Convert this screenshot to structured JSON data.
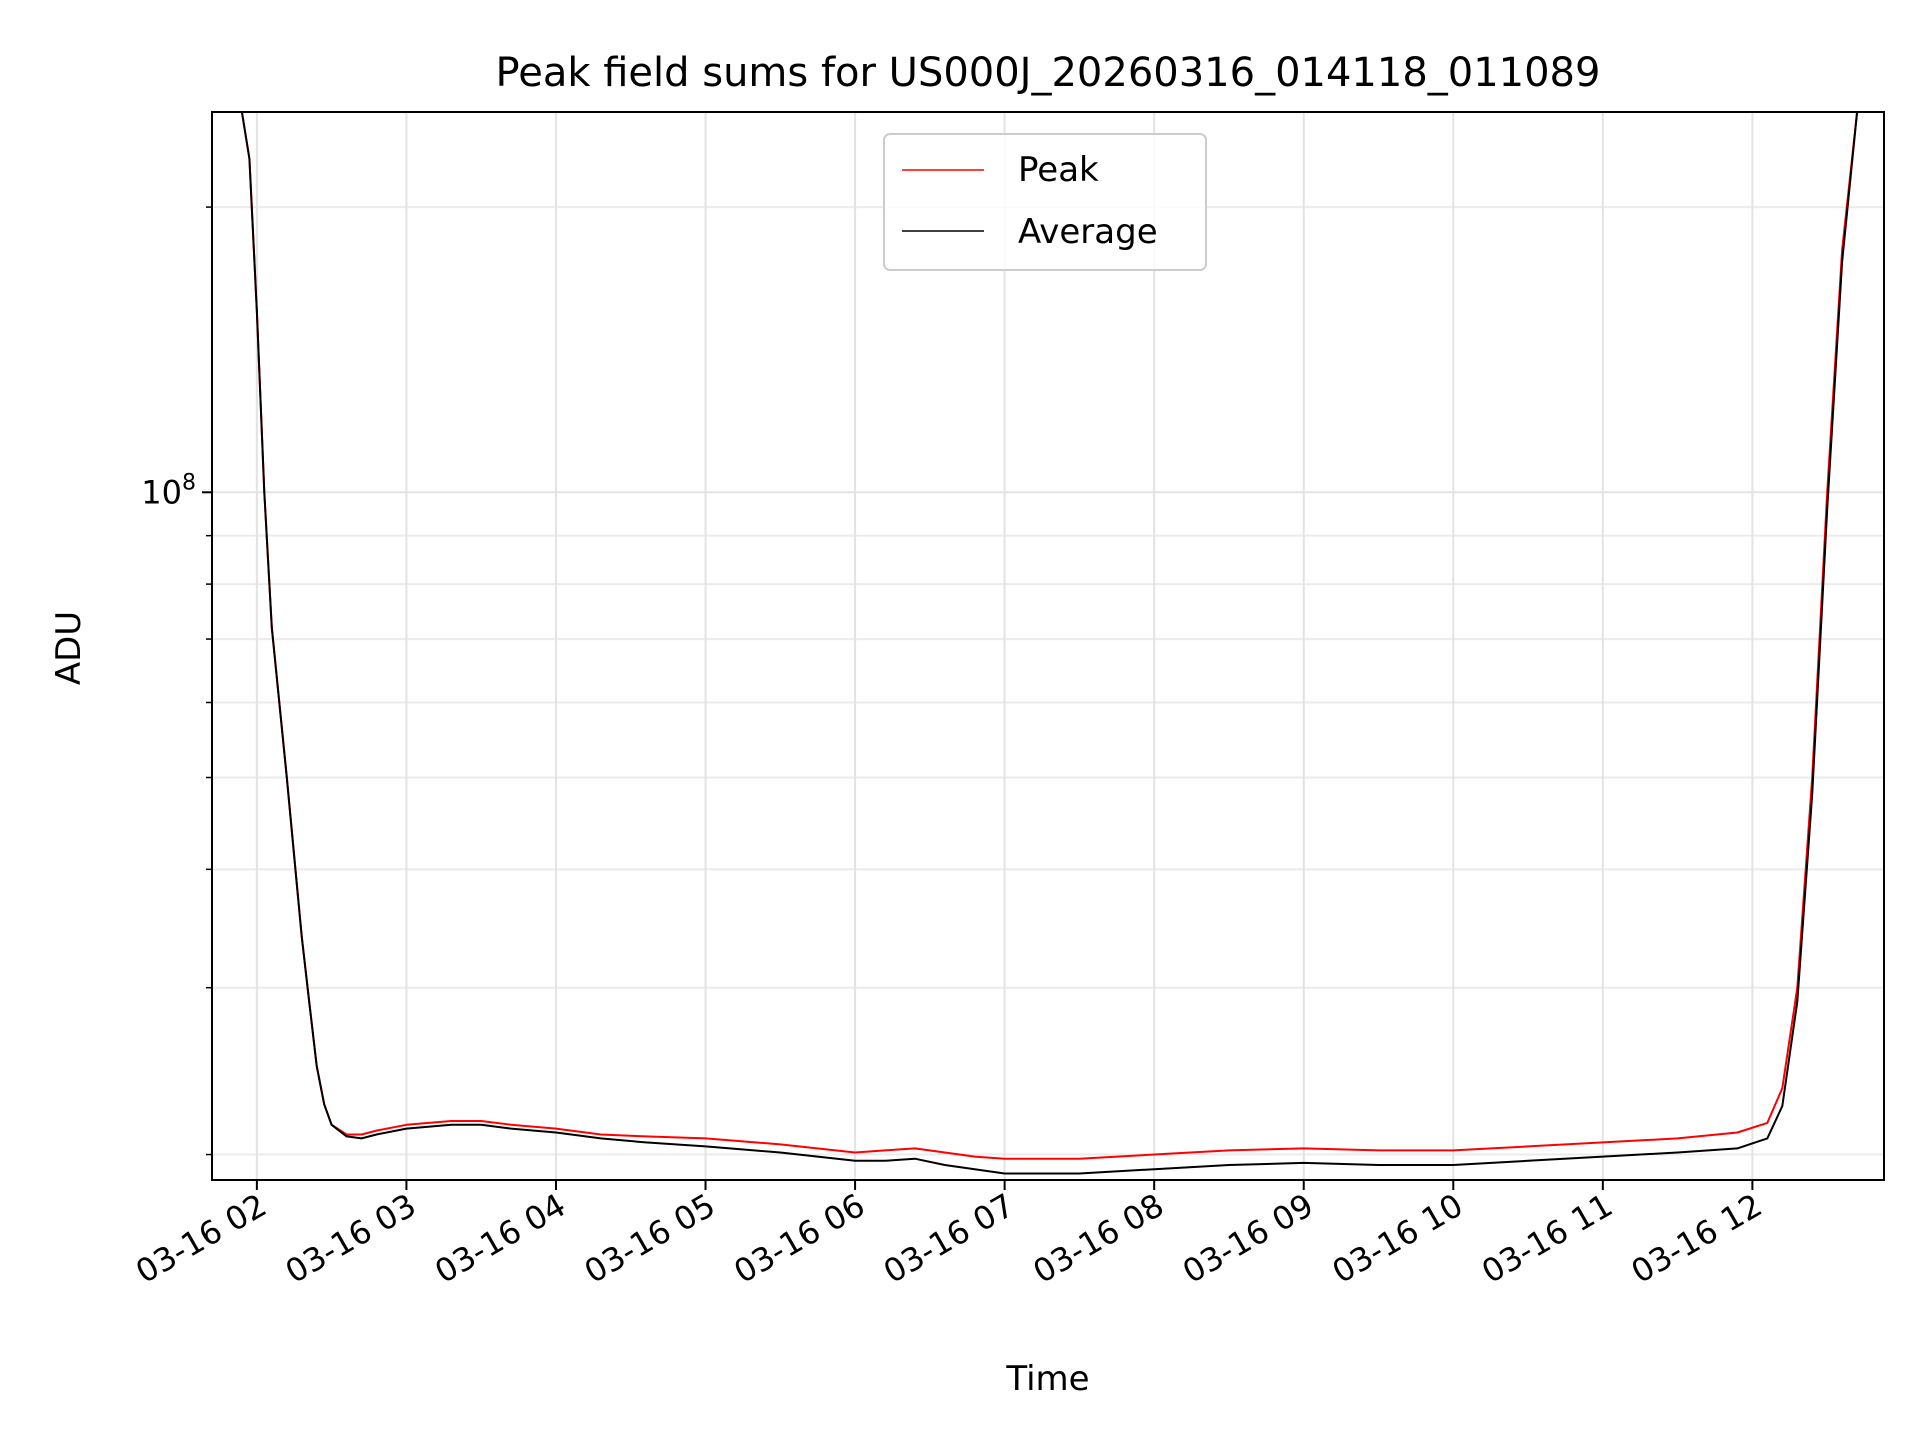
{
  "chart_data": {
    "type": "line",
    "title": "Peak field sums for US000J_20260316_014118_011089",
    "xlabel": "Time",
    "ylabel": "ADU",
    "yscale": "log",
    "ylim": [
      18800000,
      252000000
    ],
    "xlim": [
      1.7,
      12.88
    ],
    "grid": true,
    "grid_minor": true,
    "legend_position": "top-center",
    "x_ticks": [
      {
        "value": 2,
        "label": "03-16 02"
      },
      {
        "value": 3,
        "label": "03-16 03"
      },
      {
        "value": 4,
        "label": "03-16 04"
      },
      {
        "value": 5,
        "label": "03-16 05"
      },
      {
        "value": 6,
        "label": "03-16 06"
      },
      {
        "value": 7,
        "label": "03-16 07"
      },
      {
        "value": 8,
        "label": "03-16 08"
      },
      {
        "value": 9,
        "label": "03-16 09"
      },
      {
        "value": 10,
        "label": "03-16 10"
      },
      {
        "value": 11,
        "label": "03-16 11"
      },
      {
        "value": 12,
        "label": "03-16 12"
      }
    ],
    "y_ticks": [
      {
        "value": 100000000,
        "base": "10",
        "exp": "8"
      }
    ],
    "y_minor_ticks": [
      20000000,
      30000000,
      40000000,
      50000000,
      60000000,
      70000000,
      80000000,
      90000000,
      200000000
    ],
    "series": [
      {
        "name": "Peak",
        "color": "#ff0000",
        "points": [
          [
            1.7,
            252000000
          ],
          [
            1.9,
            252000000
          ],
          [
            1.95,
            225000000
          ],
          [
            2.0,
            155000000
          ],
          [
            2.05,
            100000000
          ],
          [
            2.1,
            72000000
          ],
          [
            2.2,
            50000000
          ],
          [
            2.3,
            34000000
          ],
          [
            2.35,
            29000000
          ],
          [
            2.4,
            24800000
          ],
          [
            2.45,
            22600000
          ],
          [
            2.5,
            21500000
          ],
          [
            2.6,
            21000000
          ],
          [
            2.7,
            21000000
          ],
          [
            2.8,
            21200000
          ],
          [
            3.0,
            21500000
          ],
          [
            3.3,
            21700000
          ],
          [
            3.5,
            21700000
          ],
          [
            3.7,
            21500000
          ],
          [
            4.0,
            21300000
          ],
          [
            4.3,
            21000000
          ],
          [
            4.6,
            20900000
          ],
          [
            5.0,
            20800000
          ],
          [
            5.5,
            20500000
          ],
          [
            6.0,
            20100000
          ],
          [
            6.2,
            20200000
          ],
          [
            6.4,
            20300000
          ],
          [
            6.6,
            20100000
          ],
          [
            6.8,
            19900000
          ],
          [
            7.0,
            19800000
          ],
          [
            7.5,
            19800000
          ],
          [
            8.0,
            20000000
          ],
          [
            8.5,
            20200000
          ],
          [
            9.0,
            20300000
          ],
          [
            9.5,
            20200000
          ],
          [
            10.0,
            20200000
          ],
          [
            10.5,
            20400000
          ],
          [
            11.0,
            20600000
          ],
          [
            11.5,
            20800000
          ],
          [
            11.9,
            21100000
          ],
          [
            12.1,
            21600000
          ],
          [
            12.2,
            23500000
          ],
          [
            12.3,
            30000000
          ],
          [
            12.4,
            50000000
          ],
          [
            12.5,
            100000000
          ],
          [
            12.6,
            180000000
          ],
          [
            12.7,
            252000000
          ],
          [
            12.88,
            252000000
          ]
        ]
      },
      {
        "name": "Average",
        "color": "#000000",
        "points": [
          [
            1.7,
            252000000
          ],
          [
            1.9,
            252000000
          ],
          [
            1.95,
            225000000
          ],
          [
            2.0,
            155000000
          ],
          [
            2.05,
            100000000
          ],
          [
            2.1,
            72000000
          ],
          [
            2.2,
            50000000
          ],
          [
            2.3,
            34000000
          ],
          [
            2.35,
            29000000
          ],
          [
            2.4,
            24800000
          ],
          [
            2.45,
            22600000
          ],
          [
            2.5,
            21500000
          ],
          [
            2.6,
            20900000
          ],
          [
            2.7,
            20800000
          ],
          [
            2.8,
            21000000
          ],
          [
            3.0,
            21300000
          ],
          [
            3.3,
            21500000
          ],
          [
            3.5,
            21500000
          ],
          [
            3.7,
            21300000
          ],
          [
            4.0,
            21100000
          ],
          [
            4.3,
            20800000
          ],
          [
            4.6,
            20600000
          ],
          [
            5.0,
            20400000
          ],
          [
            5.5,
            20100000
          ],
          [
            6.0,
            19700000
          ],
          [
            6.2,
            19700000
          ],
          [
            6.4,
            19800000
          ],
          [
            6.6,
            19500000
          ],
          [
            6.8,
            19300000
          ],
          [
            7.0,
            19100000
          ],
          [
            7.5,
            19100000
          ],
          [
            8.0,
            19300000
          ],
          [
            8.5,
            19500000
          ],
          [
            9.0,
            19600000
          ],
          [
            9.5,
            19500000
          ],
          [
            10.0,
            19500000
          ],
          [
            10.5,
            19700000
          ],
          [
            11.0,
            19900000
          ],
          [
            11.5,
            20100000
          ],
          [
            11.9,
            20300000
          ],
          [
            12.1,
            20800000
          ],
          [
            12.2,
            22500000
          ],
          [
            12.3,
            29000000
          ],
          [
            12.4,
            48000000
          ],
          [
            12.5,
            96000000
          ],
          [
            12.6,
            175000000
          ],
          [
            12.7,
            252000000
          ],
          [
            12.88,
            252000000
          ]
        ]
      }
    ]
  }
}
